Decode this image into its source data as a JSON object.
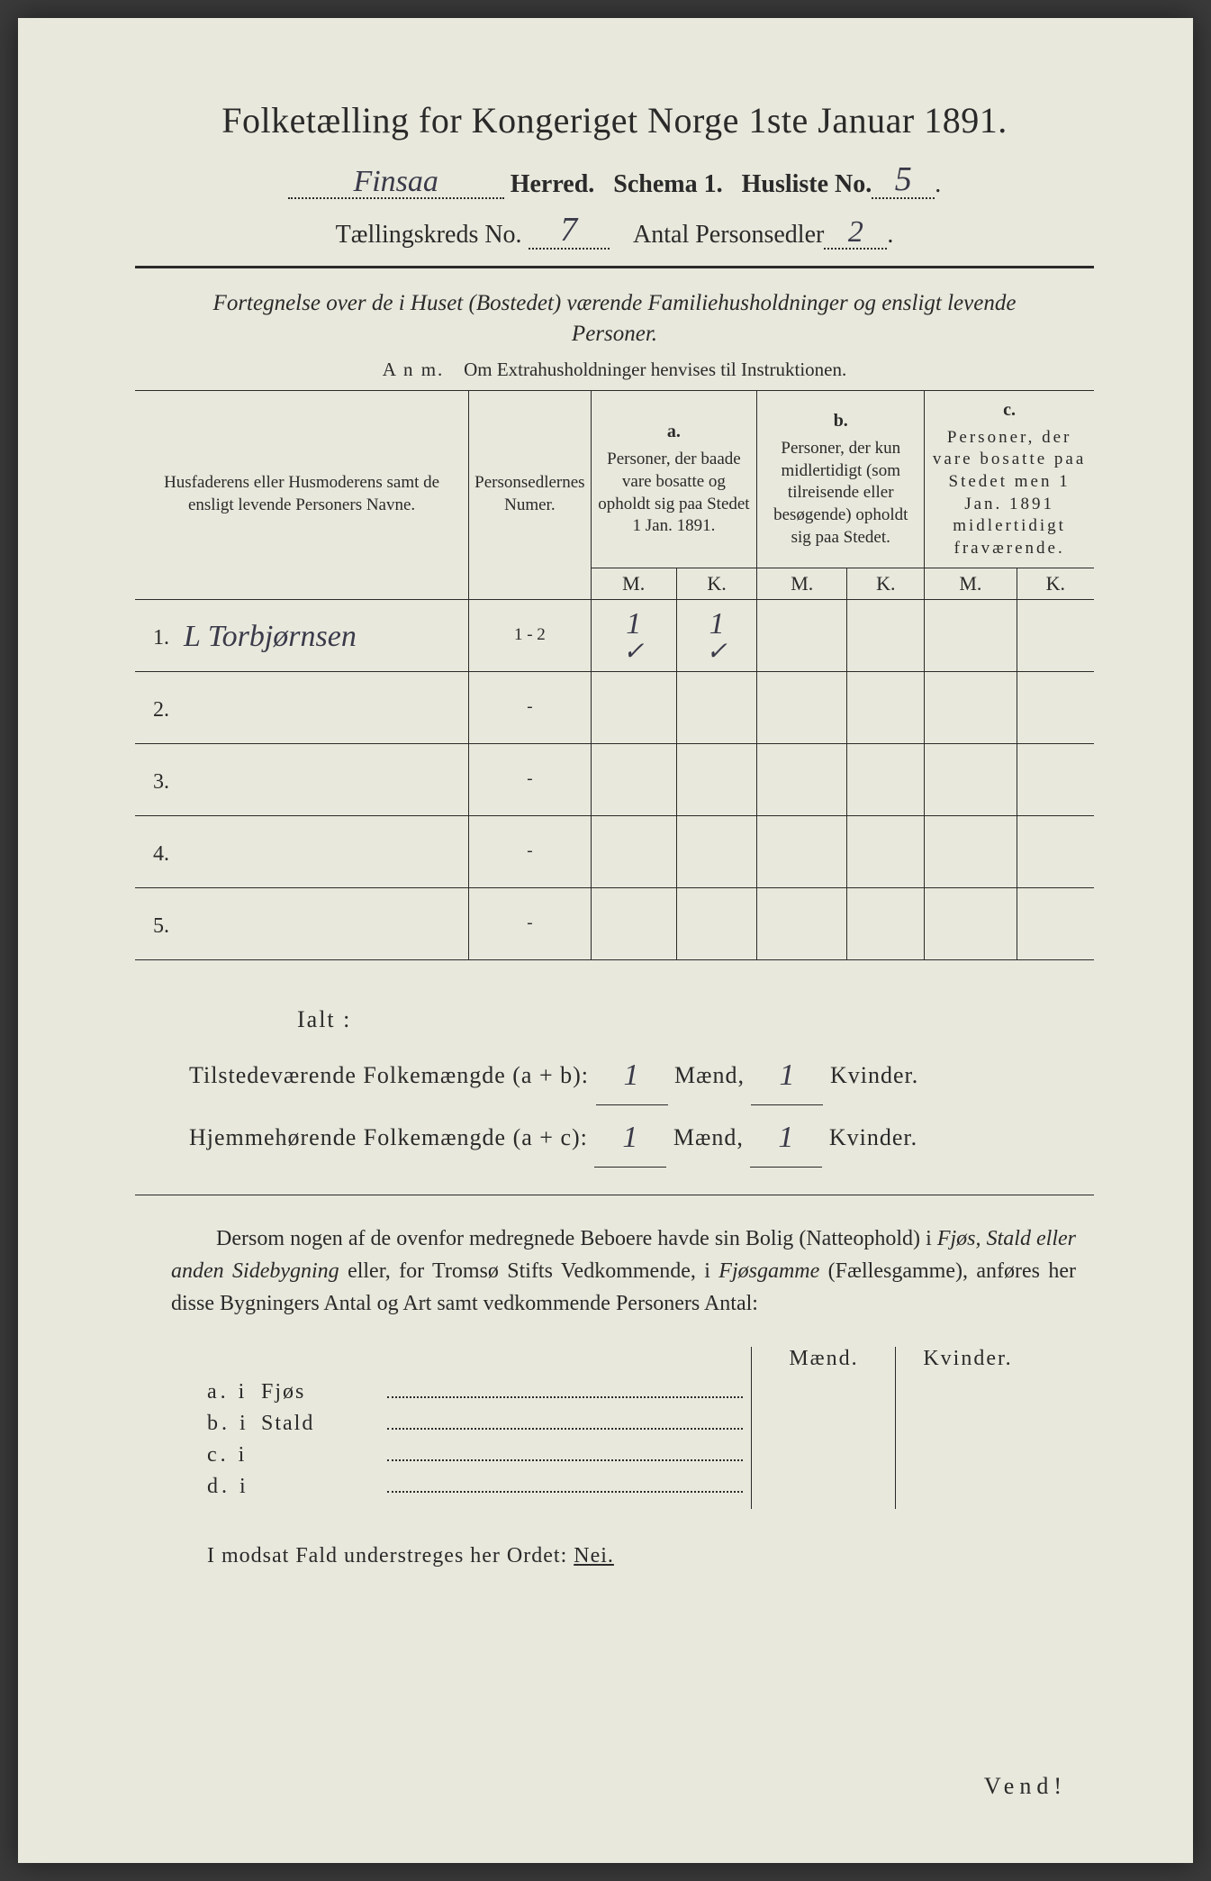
{
  "colors": {
    "paper": "#e8e8dc",
    "ink": "#2a2a2a",
    "handwriting": "#3a3a4a",
    "background": "#3a3a3a"
  },
  "header": {
    "title": "Folketælling for Kongeriget Norge 1ste Januar 1891.",
    "herred_value": "Finsaa",
    "herred_label": "Herred.",
    "schema_label": "Schema 1.",
    "husliste_label": "Husliste No.",
    "husliste_value": "5",
    "kreds_label": "Tællingskreds No.",
    "kreds_value": "7",
    "antal_label": "Antal Personsedler",
    "antal_value": "2"
  },
  "subtitle": "Fortegnelse over de i Huset (Bostedet) værende Familiehusholdninger og ensligt levende Personer.",
  "anm": {
    "prefix": "A n m.",
    "text": "Om Extrahusholdninger henvises til Instruktionen."
  },
  "table": {
    "col_names": {
      "name": "Husfaderens eller Husmoderens samt de ensligt levende Personers Navne.",
      "numer": "Personsedlernes Numer.",
      "a_label": "a.",
      "a_text": "Personer, der baade vare bosatte og opholdt sig paa Stedet 1 Jan. 1891.",
      "b_label": "b.",
      "b_text": "Personer, der kun midlertidigt (som tilreisende eller besøgende) opholdt sig paa Stedet.",
      "c_label": "c.",
      "c_text": "Personer, der vare bosatte paa Stedet men 1 Jan. 1891 midlertidigt fraværende.",
      "m": "M.",
      "k": "K."
    },
    "rows": [
      {
        "num": "1.",
        "name": "L Torbjørnsen",
        "numer": "1 - 2",
        "a_m": "1",
        "a_k": "1",
        "b_m": "",
        "b_k": "",
        "c_m": "",
        "c_k": ""
      },
      {
        "num": "2.",
        "name": "",
        "numer": "-",
        "a_m": "",
        "a_k": "",
        "b_m": "",
        "b_k": "",
        "c_m": "",
        "c_k": ""
      },
      {
        "num": "3.",
        "name": "",
        "numer": "-",
        "a_m": "",
        "a_k": "",
        "b_m": "",
        "b_k": "",
        "c_m": "",
        "c_k": ""
      },
      {
        "num": "4.",
        "name": "",
        "numer": "-",
        "a_m": "",
        "a_k": "",
        "b_m": "",
        "b_k": "",
        "c_m": "",
        "c_k": ""
      },
      {
        "num": "5.",
        "name": "",
        "numer": "-",
        "a_m": "",
        "a_k": "",
        "b_m": "",
        "b_k": "",
        "c_m": "",
        "c_k": ""
      }
    ],
    "checkmarks_row1": {
      "a_m": "✓",
      "a_k": "✓"
    }
  },
  "totals": {
    "ialt": "Ialt :",
    "row1_label": "Tilstedeværende Folkemængde (a + b):",
    "row2_label": "Hjemmehørende Folkemængde (a + c):",
    "maend": "Mænd,",
    "kvinder": "Kvinder.",
    "r1_m": "1",
    "r1_k": "1",
    "r2_m": "1",
    "r2_k": "1"
  },
  "para": {
    "t1": "Dersom nogen af de ovenfor medregnede Beboere havde sin Bolig (Natteophold) i ",
    "it1": "Fjøs, Stald eller anden Sidebygning",
    "t2": " eller, for Tromsø Stifts Vedkommende, i ",
    "it2": "Fjøsgamme",
    "t3": " (Fællesgamme), anføres her disse Bygningers Antal og Art samt vedkommende Personers Antal:"
  },
  "buildings": {
    "maend": "Mænd.",
    "kvinder": "Kvinder.",
    "rows": [
      {
        "lbl": "a.  i",
        "name": "Fjøs"
      },
      {
        "lbl": "b.  i",
        "name": "Stald"
      },
      {
        "lbl": "c.  i",
        "name": ""
      },
      {
        "lbl": "d.  i",
        "name": ""
      }
    ]
  },
  "nei": {
    "text": "I modsat Fald understreges her Ordet:",
    "word": "Nei."
  },
  "vend": "Vend!"
}
